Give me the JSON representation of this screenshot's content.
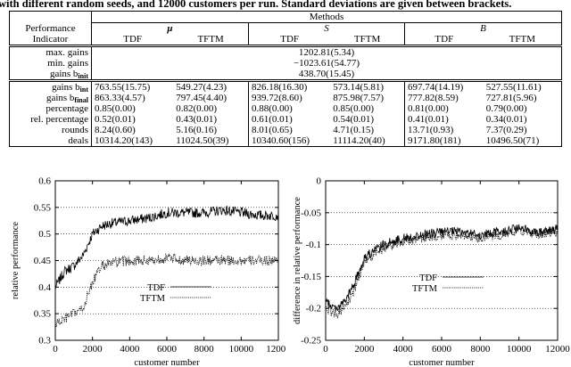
{
  "caption": "with different random seeds, and 12000 customers per run. Standard deviations are given between brackets.",
  "table": {
    "methods_label": "Methods",
    "indicator_header_1": "Performance",
    "indicator_header_2": "Indicator",
    "groups": [
      "μ",
      "S",
      "B"
    ],
    "sub_headers": [
      "TDF",
      "TFTM"
    ],
    "shared_rows": [
      {
        "label": "max. gains",
        "value": "1202.81(5.34)"
      },
      {
        "label": "min. gains",
        "value": "−1023.61(54.77)"
      },
      {
        "label_main": "gains b",
        "label_sub": "init",
        "value": "438.70(15.45)"
      }
    ],
    "rows": [
      {
        "label_main": "gains b",
        "label_sub": "int",
        "values": [
          "763.55(15.75)",
          "549.27(4.23)",
          "826.18(16.30)",
          "573.14(5.81)",
          "697.74(14.19)",
          "527.55(11.61)"
        ]
      },
      {
        "label_main": "gains b",
        "label_sub": "final",
        "values": [
          "863.33(4.57)",
          "797.45(4.40)",
          "939.72(8.60)",
          "875.98(7.57)",
          "777.82(8.59)",
          "727.81(5.96)"
        ]
      },
      {
        "label": "percentage",
        "values": [
          "0.85(0.00)",
          "0.82(0.00)",
          "0.88(0.00)",
          "0.85(0.00)",
          "0.81(0.00)",
          "0.79(0.00)"
        ]
      },
      {
        "label": "rel. percentage",
        "values": [
          "0.52(0.01)",
          "0.43(0.01)",
          "0.61(0.01)",
          "0.54(0.01)",
          "0.41(0.01)",
          "0.34(0.01)"
        ]
      },
      {
        "label": "rounds",
        "values": [
          "8.24(0.60)",
          "5.16(0.16)",
          "8.01(0.65)",
          "4.71(0.15)",
          "13.71(0.93)",
          "7.37(0.29)"
        ]
      },
      {
        "label": "deals",
        "values": [
          "10314.20(143)",
          "11024.50(39)",
          "10340.60(156)",
          "11114.20(40)",
          "9171.80(181)",
          "10496.50(71)"
        ]
      }
    ]
  },
  "chart_data": [
    {
      "type": "line",
      "xlabel": "customer number",
      "ylabel": "relative performance",
      "xlim": [
        0,
        12000
      ],
      "ylim": [
        0.3,
        0.6
      ],
      "xticks": [
        "0",
        "2000",
        "4000",
        "6000",
        "8000",
        "10000",
        "12000"
      ],
      "yticks": [
        "0.3",
        "0.35",
        "0.4",
        "0.45",
        "0.5",
        "0.55",
        "0.6"
      ],
      "grid": "horizontal dotted",
      "legend_position": "center-right",
      "series": [
        {
          "name": "TDF",
          "style": "solid",
          "x": [
            0,
            500,
            1000,
            1500,
            2000,
            2500,
            3000,
            4000,
            5000,
            6000,
            7000,
            8000,
            9000,
            10000,
            11000,
            12000
          ],
          "y": [
            0.4,
            0.43,
            0.44,
            0.46,
            0.5,
            0.515,
            0.52,
            0.525,
            0.53,
            0.54,
            0.54,
            0.54,
            0.545,
            0.54,
            0.535,
            0.535
          ]
        },
        {
          "name": "TFTM",
          "style": "dotted",
          "x": [
            0,
            500,
            1000,
            1500,
            2000,
            2500,
            3000,
            4000,
            5000,
            6000,
            7000,
            8000,
            9000,
            10000,
            11000,
            12000
          ],
          "y": [
            0.33,
            0.34,
            0.35,
            0.36,
            0.41,
            0.44,
            0.445,
            0.45,
            0.45,
            0.455,
            0.45,
            0.45,
            0.45,
            0.45,
            0.45,
            0.45
          ]
        }
      ]
    },
    {
      "type": "line",
      "xlabel": "customer number",
      "ylabel": "difference in relative performance",
      "xlim": [
        0,
        12000
      ],
      "ylim": [
        -0.25,
        0
      ],
      "xticks": [
        "0",
        "2000",
        "4000",
        "6000",
        "8000",
        "10000",
        "12000"
      ],
      "yticks": [
        "-0.25",
        "-0.2",
        "-0.15",
        "-0.1",
        "-0.05",
        "0"
      ],
      "grid": "horizontal dotted",
      "legend_position": "center-right",
      "series": [
        {
          "name": "TDF",
          "style": "solid",
          "x": [
            0,
            500,
            1000,
            1500,
            2000,
            2500,
            3000,
            4000,
            5000,
            6000,
            7000,
            8000,
            9000,
            10000,
            11000,
            12000
          ],
          "y": [
            -0.19,
            -0.2,
            -0.19,
            -0.16,
            -0.12,
            -0.11,
            -0.1,
            -0.09,
            -0.085,
            -0.08,
            -0.08,
            -0.085,
            -0.08,
            -0.075,
            -0.08,
            -0.075
          ]
        },
        {
          "name": "TFTM",
          "style": "dotted",
          "x": [
            0,
            500,
            1000,
            1500,
            2000,
            2500,
            3000,
            4000,
            5000,
            6000,
            7000,
            8000,
            9000,
            10000,
            11000,
            12000
          ],
          "y": [
            -0.2,
            -0.21,
            -0.2,
            -0.17,
            -0.125,
            -0.115,
            -0.105,
            -0.095,
            -0.09,
            -0.085,
            -0.085,
            -0.09,
            -0.085,
            -0.08,
            -0.085,
            -0.08
          ]
        }
      ]
    }
  ]
}
